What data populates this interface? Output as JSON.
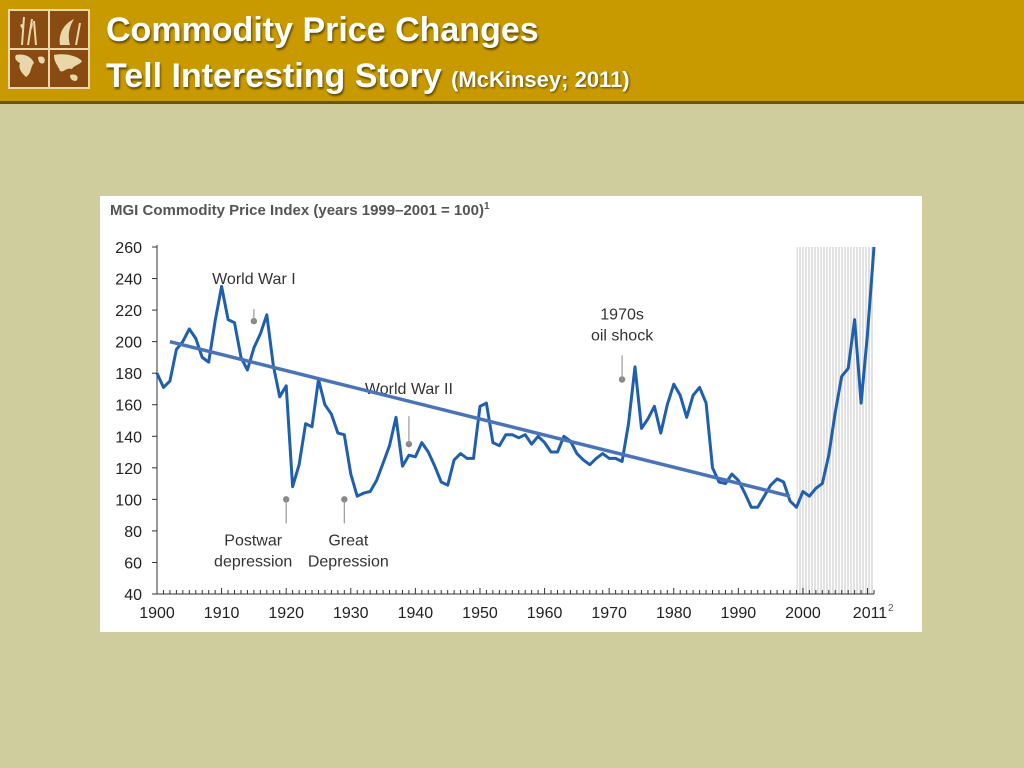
{
  "header": {
    "title_line1": "Commodity Price Changes",
    "title_line2": "Tell Interesting Story",
    "citation": "(McKinsey; 2011)",
    "logo_icon": "world-map-crops-logo-icon",
    "background_color": "#c99a00"
  },
  "chart_data": {
    "type": "line",
    "title": "MGI Commodity Price Index (years 1999–2001 = 100)",
    "title_footnote": "1",
    "ylim": [
      40,
      260
    ],
    "y_ticks": [
      260,
      240,
      220,
      200,
      180,
      160,
      140,
      120,
      100,
      80,
      60,
      40
    ],
    "xlim": [
      1900,
      2011
    ],
    "x_ticks": [
      1900,
      1910,
      1920,
      1930,
      1940,
      1950,
      1960,
      1970,
      1980,
      1990,
      2000
    ],
    "x_last_tick": "2011",
    "x_last_tick_footnote": "2",
    "shaded_region": [
      1999,
      2011
    ],
    "line_color": "#1f5fae",
    "trend_color": "#4a74b8",
    "series": [
      {
        "x": [
          1900,
          1901,
          1902,
          1903,
          1904,
          1905,
          1906,
          1907,
          1908,
          1909,
          1910,
          1911,
          1912,
          1913,
          1914,
          1915,
          1916,
          1917,
          1918,
          1919,
          1920,
          1921,
          1922,
          1923,
          1924,
          1925,
          1926,
          1927,
          1928,
          1929,
          1930,
          1931,
          1932,
          1933,
          1934,
          1935,
          1936,
          1937,
          1938,
          1939,
          1940,
          1941,
          1942,
          1943,
          1944,
          1945,
          1946,
          1947,
          1948,
          1949,
          1950,
          1951,
          1952,
          1953,
          1954,
          1955,
          1956,
          1957,
          1958,
          1959,
          1960,
          1961,
          1962,
          1963,
          1964,
          1965,
          1966,
          1967,
          1968,
          1969,
          1970,
          1971,
          1972,
          1973,
          1974,
          1975,
          1976,
          1977,
          1978,
          1979,
          1980,
          1981,
          1982,
          1983,
          1984,
          1985,
          1986,
          1987,
          1988,
          1989,
          1990,
          1991,
          1992,
          1993,
          1994,
          1995,
          1996,
          1997,
          1998,
          1999,
          2000,
          2001,
          2002,
          2003,
          2004,
          2005,
          2006,
          2007,
          2008,
          2009,
          2010,
          2011
        ],
        "values": [
          180,
          171,
          175,
          195,
          200,
          208,
          202,
          190,
          187,
          213,
          235,
          214,
          212,
          190,
          182,
          196,
          205,
          217,
          185,
          165,
          172,
          108,
          122,
          148,
          146,
          176,
          160,
          154,
          142,
          141,
          116,
          102,
          104,
          105,
          112,
          123,
          134,
          152,
          121,
          128,
          127,
          136,
          130,
          121,
          111,
          109,
          125,
          129,
          126,
          126,
          159,
          161,
          136,
          134,
          141,
          141,
          139,
          141,
          135,
          140,
          136,
          130,
          130,
          140,
          137,
          129,
          125,
          122,
          126,
          129,
          126,
          126,
          124,
          148,
          184,
          145,
          151,
          159,
          142,
          160,
          173,
          166,
          152,
          166,
          171,
          161,
          120,
          111,
          110,
          116,
          112,
          104,
          95,
          95,
          102,
          109,
          113,
          111,
          99,
          95,
          105,
          102,
          107,
          110,
          128,
          155,
          178,
          183,
          214,
          161,
          205,
          260
        ]
      }
    ],
    "trend_line": {
      "x": [
        1902,
        1998
      ],
      "y": [
        200,
        102
      ]
    },
    "annotations": [
      {
        "text": "World War I",
        "year": 1915,
        "value": 213
      },
      {
        "text": "Postwar depression",
        "lines": [
          "Postwar",
          "depression"
        ],
        "year": 1920,
        "value": 100
      },
      {
        "text": "Great Depression",
        "lines": [
          "Great",
          "Depression"
        ],
        "year": 1929,
        "value": 100
      },
      {
        "text": "World War II",
        "year": 1939,
        "value": 135
      },
      {
        "text": "1970s oil shock",
        "lines": [
          "1970s",
          "oil shock"
        ],
        "year": 1972,
        "value": 176
      }
    ]
  }
}
